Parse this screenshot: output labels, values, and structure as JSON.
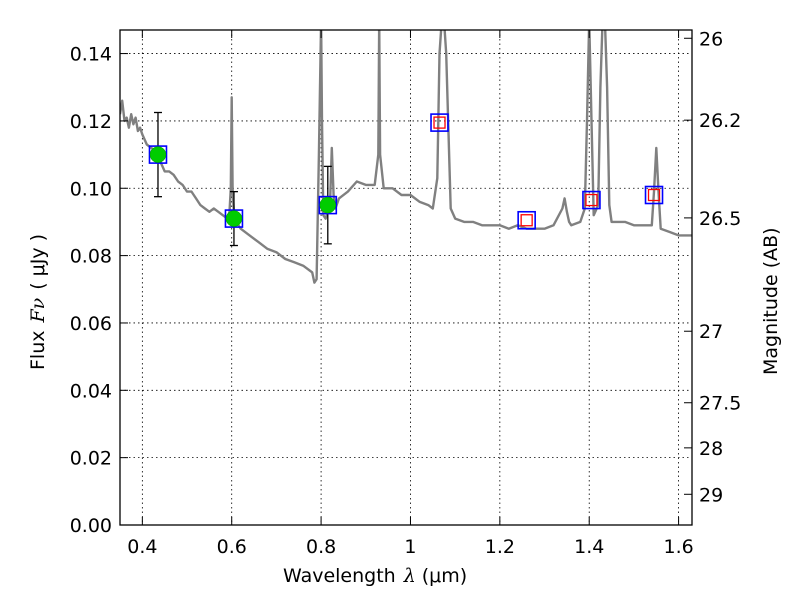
{
  "chart_data": {
    "type": "line",
    "xlabel": "Wavelength",
    "xlabel_symbol": "λ",
    "xlabel_unit": "(μm)",
    "ylabel": "Flux",
    "ylabel_symbol": "Fν",
    "ylabel_unit": "( μJy )",
    "y2label": "Magnitude (AB)",
    "xlim": [
      0.35,
      1.63
    ],
    "ylim": [
      0.0,
      0.147
    ],
    "grid": true,
    "x_ticks": [
      0.4,
      0.6,
      0.8,
      1.0,
      1.2,
      1.4,
      1.6
    ],
    "x_tick_labels": [
      "0.4",
      "0.6",
      "0.8",
      "1",
      "1.2",
      "1.4",
      "1.6"
    ],
    "y_ticks": [
      0.0,
      0.02,
      0.04,
      0.06,
      0.08,
      0.1,
      0.12,
      0.14
    ],
    "y_tick_labels": [
      "0.00",
      "0.02",
      "0.04",
      "0.06",
      "0.08",
      "0.10",
      "0.12",
      "0.14"
    ],
    "mag_ticks": [
      26,
      26.2,
      26.5,
      27,
      27.5,
      28,
      29
    ],
    "mag_tick_labels": [
      "26",
      "26.2",
      "26.5",
      "27",
      "27.5",
      "28",
      "29"
    ],
    "series": [
      {
        "style": "model-spectrum",
        "color": "#808080",
        "x": [
          0.35,
          0.355,
          0.36,
          0.365,
          0.37,
          0.375,
          0.38,
          0.385,
          0.39,
          0.395,
          0.4,
          0.41,
          0.42,
          0.43,
          0.44,
          0.45,
          0.46,
          0.47,
          0.48,
          0.49,
          0.5,
          0.51,
          0.52,
          0.53,
          0.54,
          0.55,
          0.56,
          0.57,
          0.58,
          0.59,
          0.595,
          0.598,
          0.6,
          0.602,
          0.605,
          0.61,
          0.62,
          0.64,
          0.66,
          0.68,
          0.7,
          0.72,
          0.74,
          0.76,
          0.78,
          0.785,
          0.79,
          0.795,
          0.8,
          0.802,
          0.805,
          0.81,
          0.82,
          0.824,
          0.828,
          0.832,
          0.84,
          0.86,
          0.88,
          0.9,
          0.92,
          0.928,
          0.93,
          0.932,
          0.94,
          0.96,
          0.98,
          1.0,
          1.02,
          1.04,
          1.05,
          1.06,
          1.065,
          1.07,
          1.075,
          1.08,
          1.09,
          1.1,
          1.12,
          1.14,
          1.16,
          1.18,
          1.2,
          1.22,
          1.24,
          1.26,
          1.28,
          1.3,
          1.32,
          1.34,
          1.345,
          1.35,
          1.355,
          1.36,
          1.38,
          1.39,
          1.395,
          1.4,
          1.405,
          1.41,
          1.42,
          1.425,
          1.43,
          1.435,
          1.44,
          1.445,
          1.45,
          1.48,
          1.5,
          1.52,
          1.54,
          1.545,
          1.55,
          1.555,
          1.56,
          1.58,
          1.6,
          1.63
        ],
        "y": [
          0.122,
          0.126,
          0.12,
          0.121,
          0.118,
          0.122,
          0.119,
          0.121,
          0.117,
          0.118,
          0.116,
          0.113,
          0.112,
          0.111,
          0.108,
          0.105,
          0.105,
          0.104,
          0.102,
          0.101,
          0.099,
          0.099,
          0.097,
          0.095,
          0.094,
          0.093,
          0.094,
          0.093,
          0.092,
          0.091,
          0.093,
          0.1,
          0.127,
          0.1,
          0.092,
          0.09,
          0.088,
          0.086,
          0.084,
          0.082,
          0.081,
          0.079,
          0.078,
          0.077,
          0.075,
          0.072,
          0.073,
          0.11,
          0.15,
          0.12,
          0.092,
          0.091,
          0.095,
          0.112,
          0.098,
          0.094,
          0.097,
          0.099,
          0.102,
          0.101,
          0.101,
          0.11,
          0.15,
          0.11,
          0.1,
          0.1,
          0.098,
          0.098,
          0.096,
          0.095,
          0.094,
          0.103,
          0.14,
          0.15,
          0.15,
          0.14,
          0.094,
          0.091,
          0.09,
          0.09,
          0.089,
          0.089,
          0.089,
          0.088,
          0.089,
          0.088,
          0.088,
          0.088,
          0.089,
          0.094,
          0.097,
          0.093,
          0.09,
          0.089,
          0.09,
          0.094,
          0.12,
          0.15,
          0.12,
          0.092,
          0.095,
          0.13,
          0.15,
          0.15,
          0.13,
          0.095,
          0.09,
          0.09,
          0.089,
          0.089,
          0.089,
          0.099,
          0.112,
          0.099,
          0.088,
          0.087,
          0.086,
          0.086
        ]
      },
      {
        "style": "photometry-with-error",
        "color": "#00cc00",
        "x": [
          0.435,
          0.605,
          0.815
        ],
        "y": [
          0.11,
          0.091,
          0.095
        ],
        "yerr": [
          0.0125,
          0.008,
          0.0115
        ]
      },
      {
        "style": "model-photometry-blue-square",
        "color": "#0000ff",
        "x": [
          0.435,
          0.605,
          0.815,
          1.065,
          1.26,
          1.405,
          1.545
        ],
        "y": [
          0.11,
          0.091,
          0.095,
          0.1195,
          0.0905,
          0.0965,
          0.098
        ]
      },
      {
        "style": "model-photometry-red-square",
        "color": "#ff0000",
        "x": [
          1.065,
          1.26,
          1.405,
          1.545
        ],
        "y": [
          0.1195,
          0.0905,
          0.0965,
          0.098
        ]
      }
    ]
  }
}
